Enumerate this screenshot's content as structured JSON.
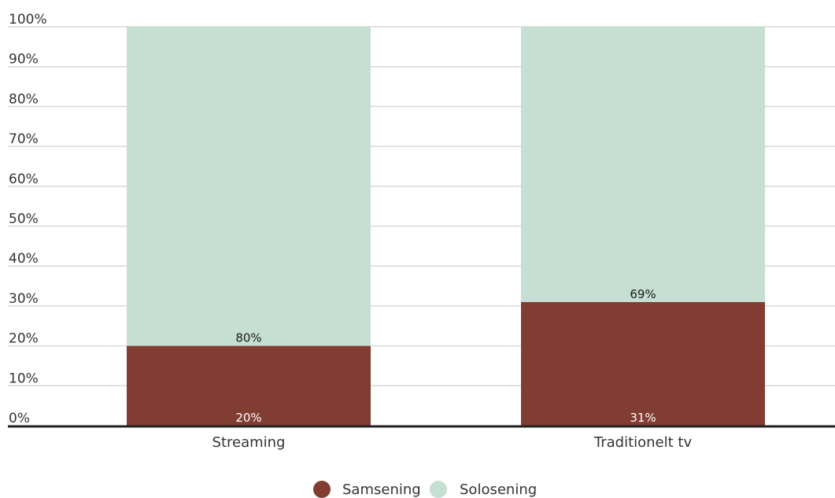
{
  "chart_data": {
    "type": "bar",
    "stacked": true,
    "categories": [
      "Streaming",
      "Traditionelt tv"
    ],
    "series": [
      {
        "name": "Samsening",
        "color": "#813d32",
        "values": [
          20,
          31
        ],
        "labels": [
          "20%",
          "31%"
        ],
        "label_color": "#ffffff"
      },
      {
        "name": "Solosening",
        "color": "#c5dfd2",
        "values": [
          80,
          69
        ],
        "labels": [
          "80%",
          "69%"
        ],
        "label_color": "#1a1a1a"
      }
    ],
    "ylim": [
      0,
      100
    ],
    "yticks": [
      0,
      10,
      20,
      30,
      40,
      50,
      60,
      70,
      80,
      90,
      100
    ],
    "ytick_labels": [
      "0%",
      "10%",
      "20%",
      "30%",
      "40%",
      "50%",
      "60%",
      "70%",
      "80%",
      "90%",
      "100%"
    ],
    "grid": true,
    "legend_position": "bottom-center",
    "title": "",
    "xlabel": "",
    "ylabel": ""
  }
}
